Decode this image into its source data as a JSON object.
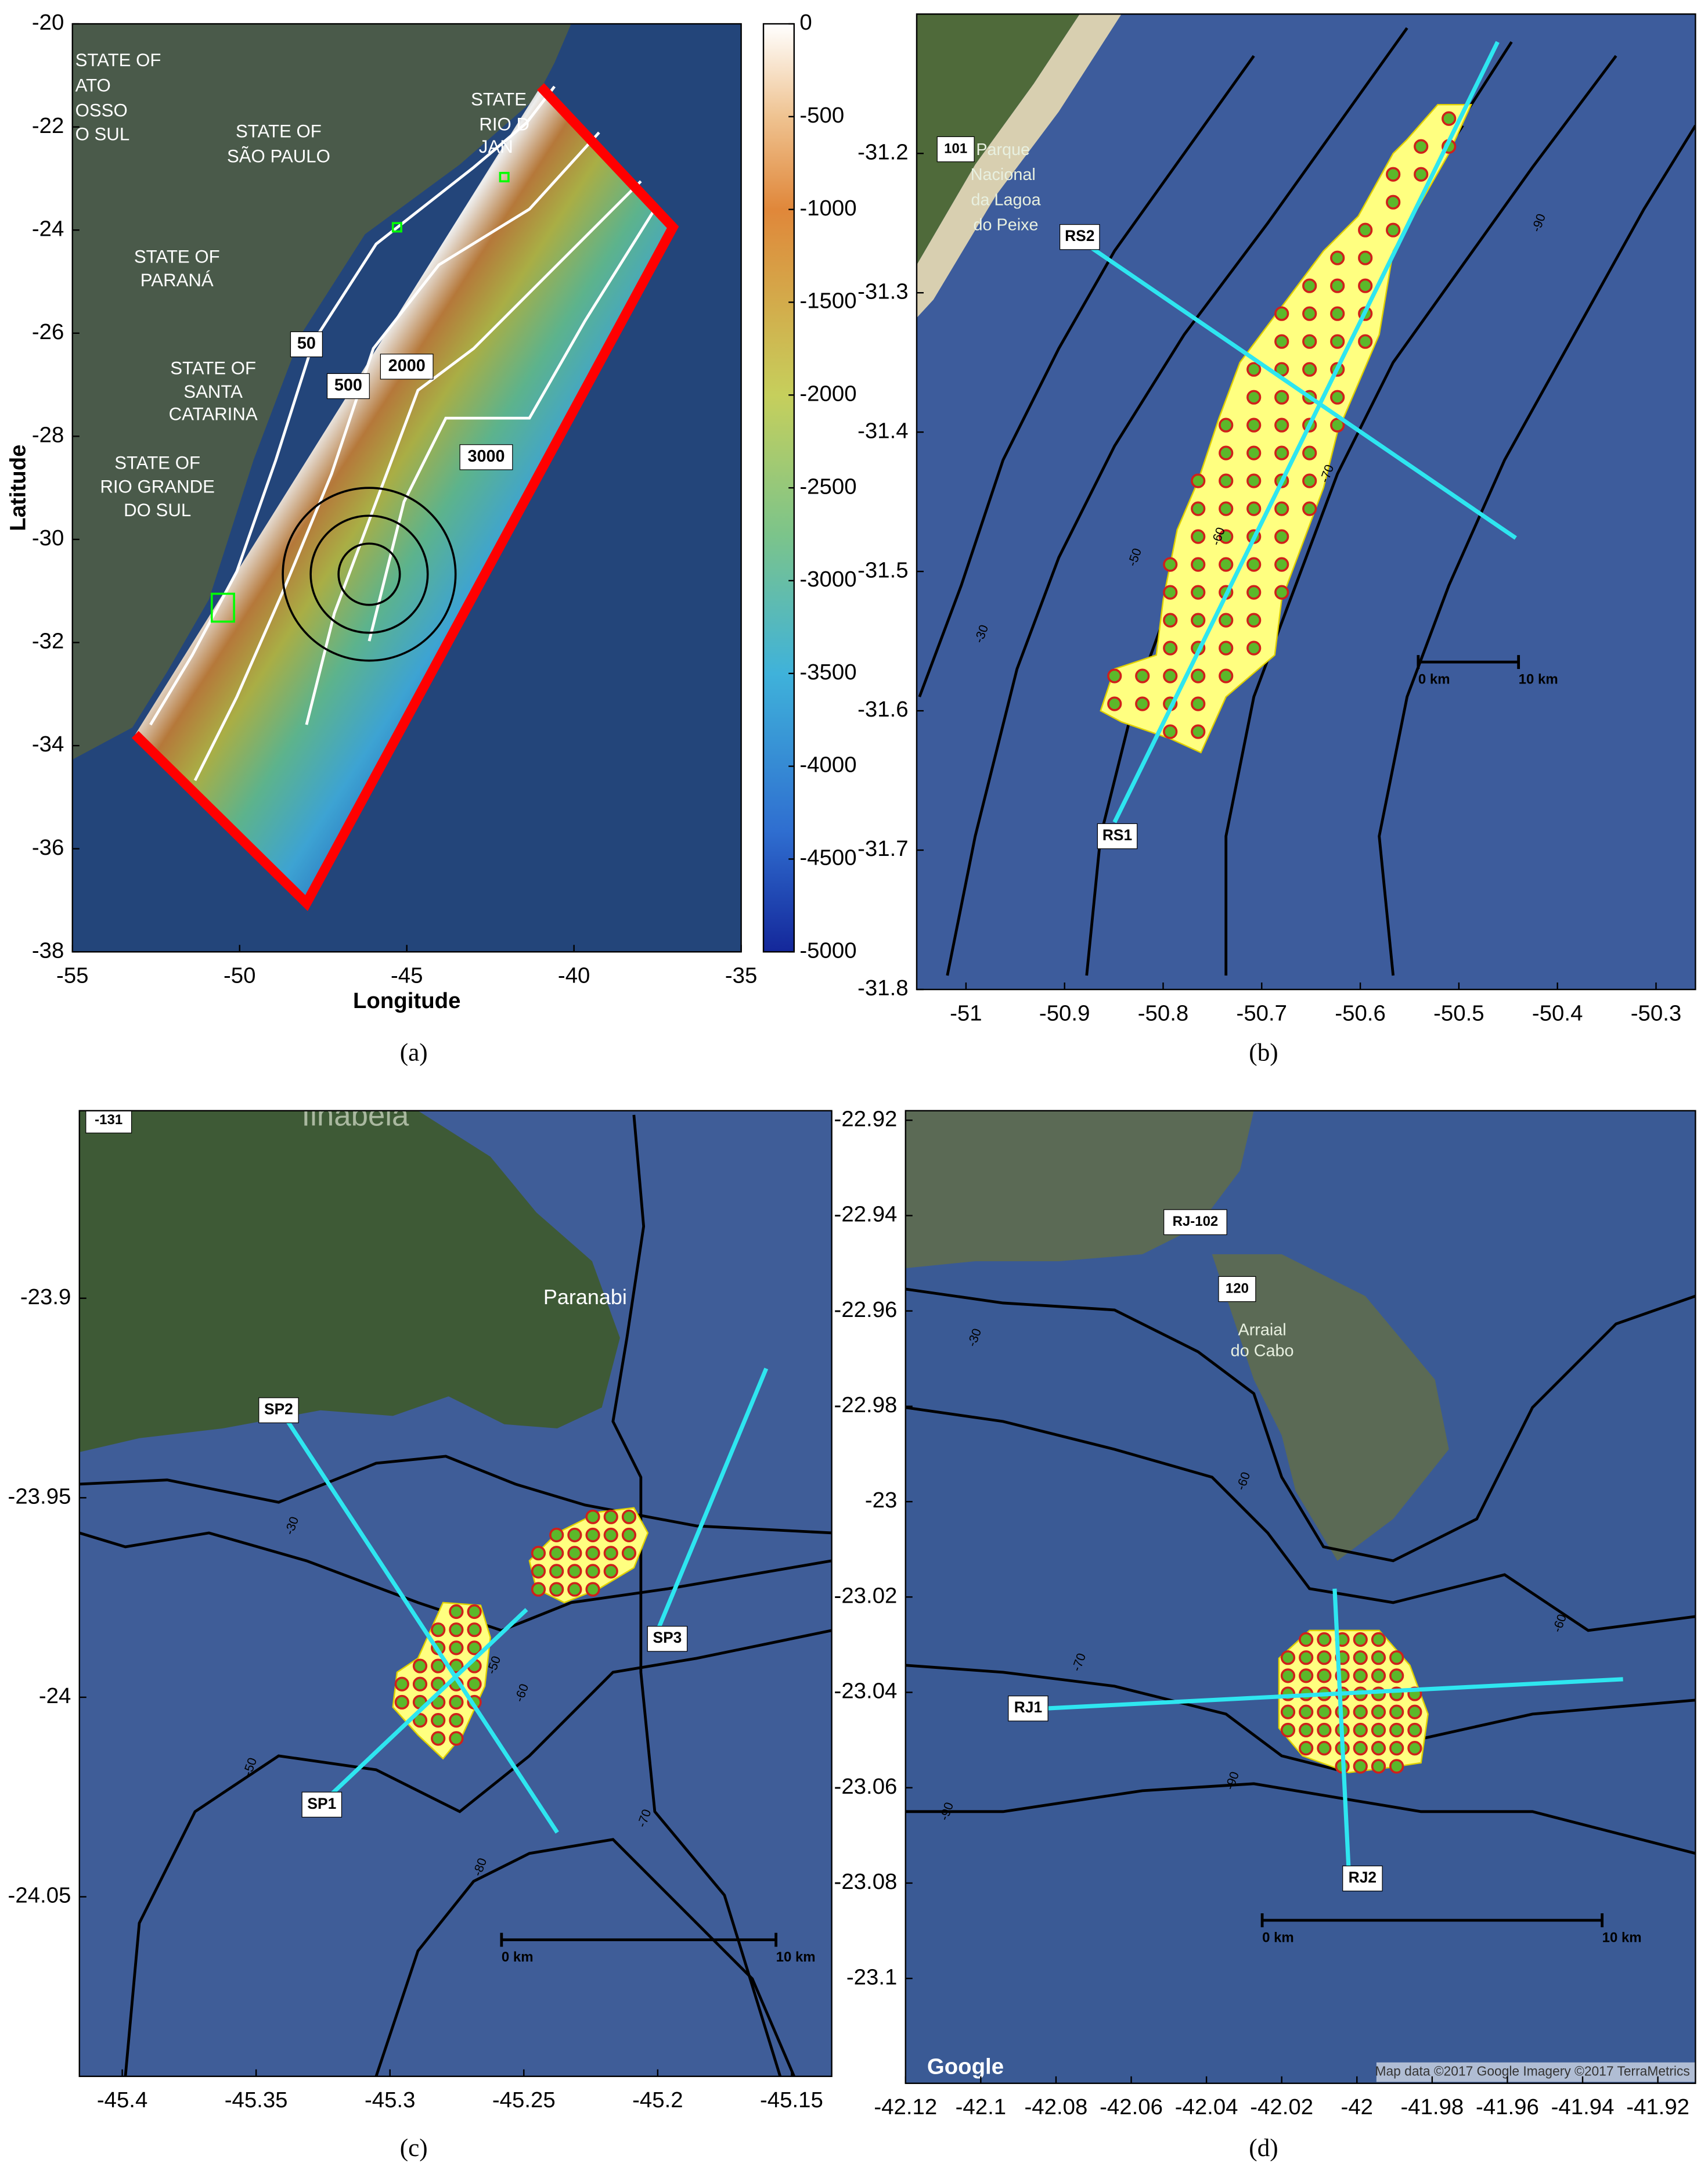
{
  "chart_data": [
    {
      "type": "map",
      "caption": "(a)",
      "xlabel": "Longitude",
      "ylabel": "Latitude",
      "xlim": [
        -55,
        -35
      ],
      "ylim": [
        -38,
        -20
      ],
      "xticks": [
        -55,
        -50,
        -45,
        -40,
        -35
      ],
      "yticks": [
        -20,
        -22,
        -24,
        -26,
        -28,
        -30,
        -32,
        -34,
        -36,
        -38
      ],
      "colorbar": {
        "lim": [
          -5000,
          0
        ],
        "ticks": [
          0,
          -500,
          -1000,
          -1500,
          -2000,
          -2500,
          -3000,
          -3500,
          -4000,
          -4500,
          -5000
        ]
      },
      "labels": [
        [
          "STATE OF",
          "ATO",
          "OSSO",
          "O SUL"
        ],
        [
          "STATE OF",
          "SÃO PAULO"
        ],
        [
          "STATE OF",
          "PARANÁ"
        ],
        [
          "STATE OF",
          "SANTA",
          "CATARINA"
        ],
        [
          "STATE OF",
          "RIO GRANDE",
          "DO SUL"
        ],
        [
          "STATE",
          "RIO D",
          "JAN"
        ]
      ],
      "contour_labels": [
        "50",
        "500",
        "2000",
        "3000"
      ]
    },
    {
      "type": "map",
      "caption": "(b)",
      "xlim": [
        -51.05,
        -50.26
      ],
      "ylim": [
        -31.8,
        -31.1
      ],
      "xticks": [
        -51,
        -50.9,
        -50.8,
        -50.7,
        -50.6,
        -50.5,
        -50.4,
        -50.3
      ],
      "yticks": [
        -31.2,
        -31.3,
        -31.4,
        -31.5,
        -31.6,
        -31.7,
        -31.8
      ],
      "labels": [
        [
          "Parque",
          "Nacional",
          "da Lagoa",
          "do Peixe"
        ],
        [
          "101"
        ]
      ],
      "transects": [
        "RS1",
        "RS2"
      ],
      "scale": [
        "0 km",
        "10 km"
      ],
      "contour_labels": [
        "-30",
        "-50",
        "-70",
        "-90",
        "-60"
      ]
    },
    {
      "type": "map",
      "caption": "(c)",
      "xlim": [
        -45.416,
        -45.135
      ],
      "ylim": [
        -24.095,
        -23.853
      ],
      "xticks": [
        -45.4,
        -45.35,
        -45.3,
        -45.25,
        -45.2,
        -45.15
      ],
      "yticks": [
        -23.9,
        -23.95,
        -24,
        -24.05
      ],
      "labels": [
        [
          "Ilhabela"
        ],
        [
          "Paranabi"
        ],
        [
          "-131"
        ]
      ],
      "transects": [
        "SP1",
        "SP2",
        "SP3"
      ],
      "scale": [
        "0 km",
        "10 km"
      ],
      "contour_labels": [
        "-30",
        "-50",
        "-50",
        "-70",
        "-80",
        "-60"
      ]
    },
    {
      "type": "map",
      "caption": "(d)",
      "xlim": [
        -42.12,
        -41.91
      ],
      "ylim": [
        -23.122,
        -22.918
      ],
      "xticks": [
        -42.12,
        -42.1,
        -42.08,
        -42.06,
        -42.04,
        -42.02,
        -42,
        -41.98,
        -41.96,
        -41.94,
        -41.92
      ],
      "yticks": [
        -22.92,
        -22.94,
        -22.96,
        -22.98,
        -23,
        -23.02,
        -23.04,
        -23.06,
        -23.08,
        -23.1
      ],
      "labels": [
        [
          "Arraial",
          "do Cabo"
        ],
        [
          "RJ-102"
        ],
        [
          "120"
        ],
        [
          "Google"
        ],
        [
          "Map data ©2017 Google  Imagery ©2017 TerraMetrics"
        ]
      ],
      "transects": [
        "RJ1",
        "RJ2"
      ],
      "scale": [
        "0 km",
        "10 km"
      ],
      "contour_labels": [
        "-30",
        "-60",
        "-70",
        "-90",
        "-90",
        "-60"
      ]
    }
  ]
}
